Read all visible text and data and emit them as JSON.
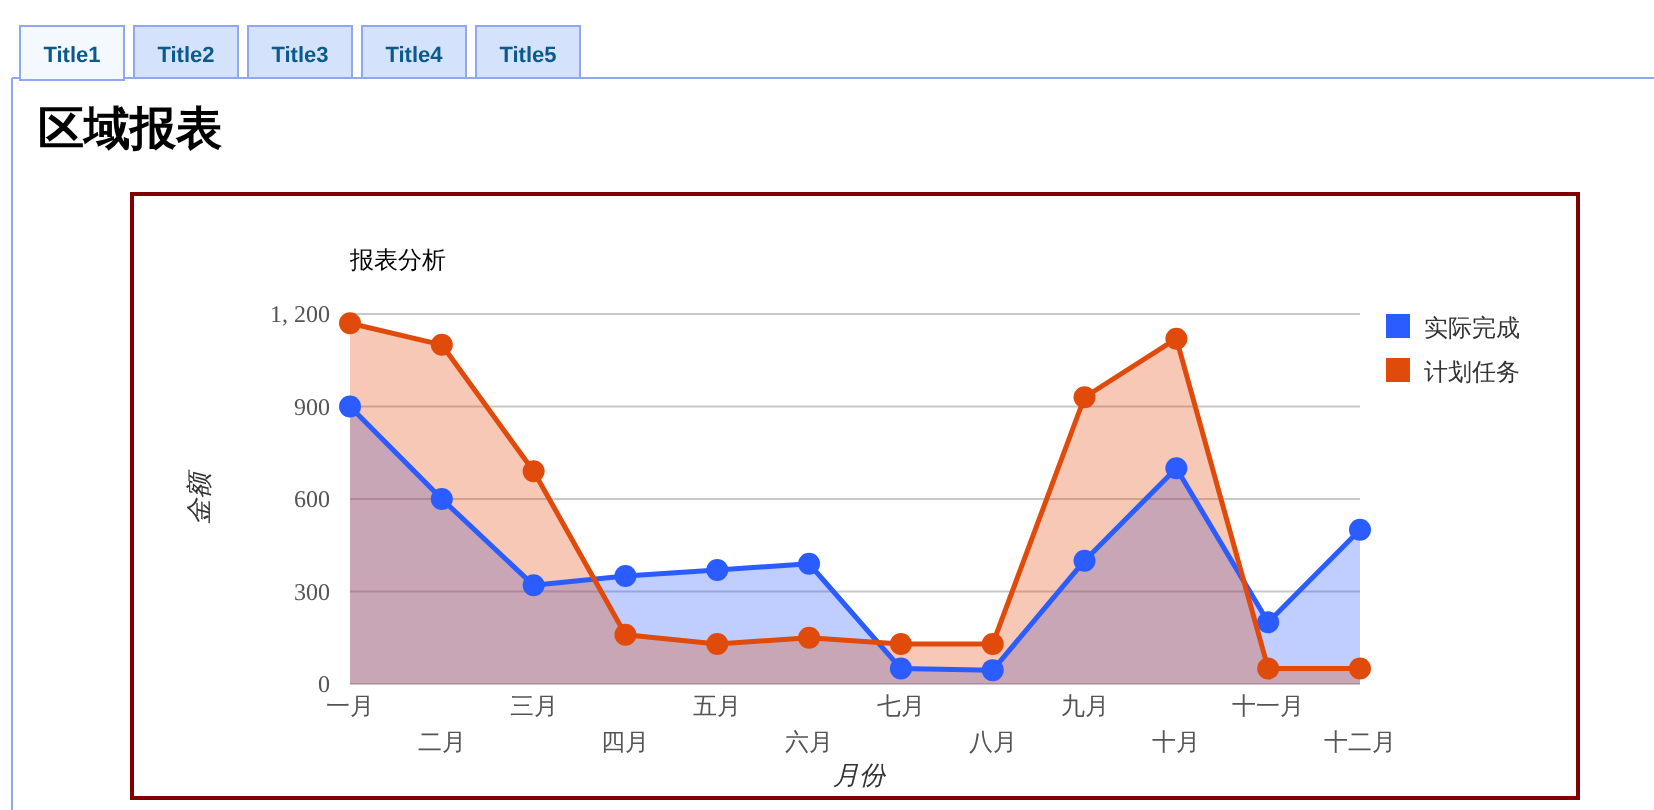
{
  "chart_data": {
    "type": "area",
    "title": "区域报表",
    "subtitle": "报表分析",
    "xlabel": "月份",
    "ylabel": "金额",
    "annotations": [
      "Title1",
      "Title2",
      "Title3",
      "Title4",
      "Title5"
    ],
    "categories": [
      "一月",
      "二月",
      "三月",
      "四月",
      "五月",
      "六月",
      "七月",
      "八月",
      "九月",
      "十月",
      "十一月",
      "十二月"
    ],
    "series": [
      {
        "name": "实际完成",
        "color": "#2a5cff",
        "values": [
          900,
          600,
          320,
          350,
          370,
          390,
          50,
          45,
          400,
          700,
          200,
          500
        ]
      },
      {
        "name": "计划任务",
        "color": "#e04a0a",
        "values": [
          1170,
          1100,
          690,
          160,
          130,
          150,
          130,
          130,
          930,
          1120,
          50,
          50
        ]
      }
    ],
    "ylim": [
      0,
      1200
    ],
    "yticks": [
      0,
      {
        "value": 300,
        "label": "300"
      },
      {
        "value": 600,
        "label": "600"
      },
      {
        "value": 900,
        "label": "900"
      },
      {
        "value": 1200,
        "label": "1, 200"
      }
    ],
    "grid": "y",
    "legend": "top right",
    "marker": "circle",
    "line_style": "solid"
  }
}
